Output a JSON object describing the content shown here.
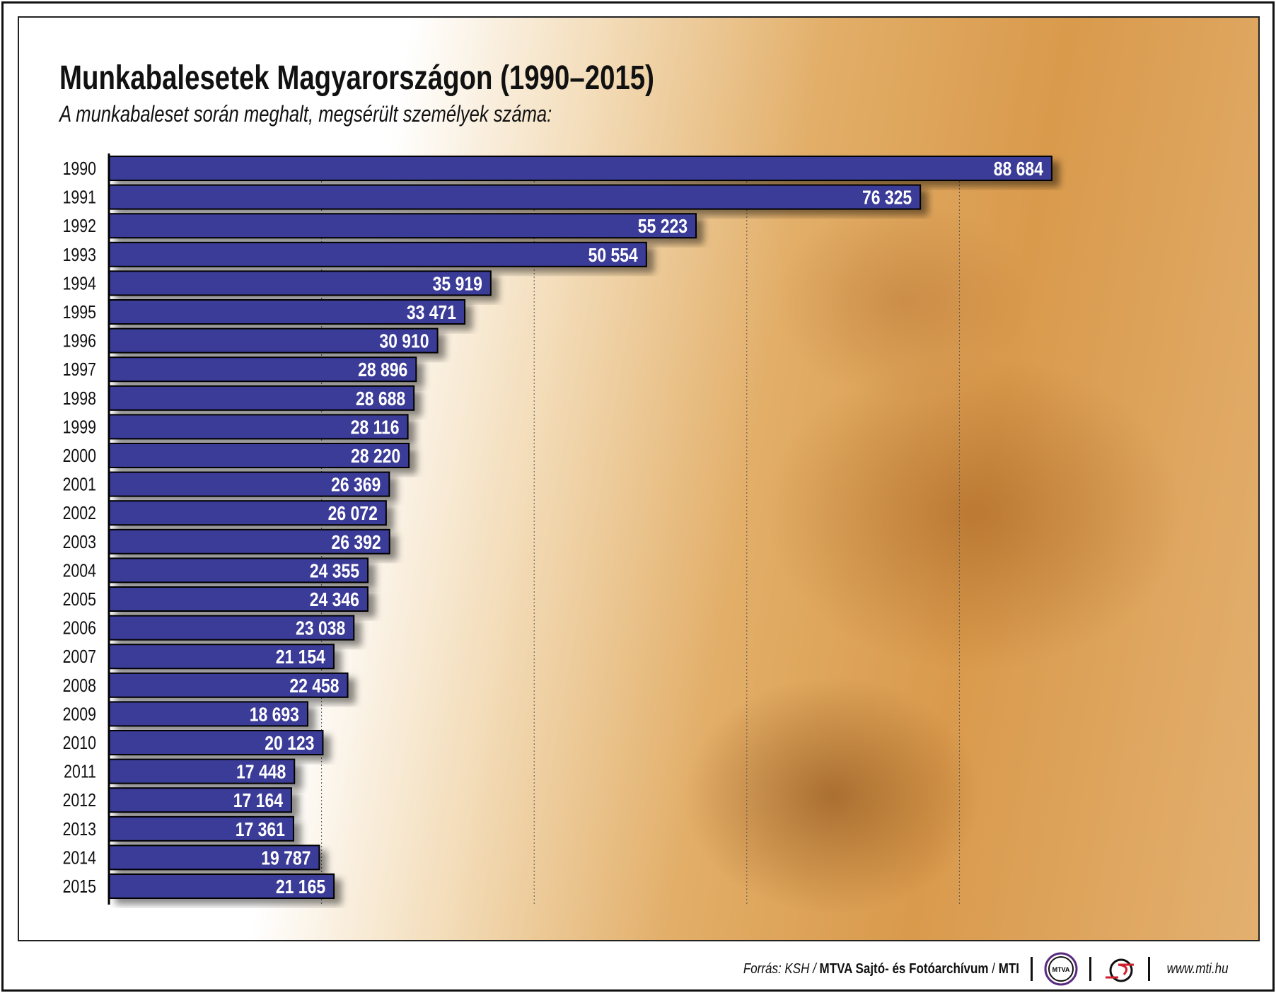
{
  "chart_data": {
    "type": "bar",
    "orientation": "horizontal",
    "title": "Munkabalesetek Magyarországon (1990–2015)",
    "subtitle": "A munkabaleset során meghalt, megsérült személyek száma:",
    "categories": [
      "1990",
      "1991",
      "1992",
      "1993",
      "1994",
      "1995",
      "1996",
      "1997",
      "1998",
      "1999",
      "2000",
      "2001",
      "2002",
      "2003",
      "2004",
      "2005",
      "2006",
      "2007",
      "2008",
      "2009",
      "2010",
      "2011",
      "2012",
      "2013",
      "2014",
      "2015"
    ],
    "values": [
      88684,
      76325,
      55223,
      50554,
      35919,
      33471,
      30910,
      28896,
      28688,
      28116,
      28220,
      26369,
      26072,
      26392,
      24355,
      24346,
      23038,
      21154,
      22458,
      18693,
      20123,
      17448,
      17164,
      17361,
      19787,
      21165
    ],
    "labels": [
      "88 684",
      "76 325",
      "55 223",
      "50 554",
      "35 919",
      "33 471",
      "30 910",
      "28 896",
      "28 688",
      "28 116",
      "28 220",
      "26 369",
      "26 072",
      "26 392",
      "24 355",
      "24 346",
      "23 038",
      "21 154",
      "22 458",
      "18 693",
      "20 123",
      "17 448",
      "17 164",
      "17 361",
      "19 787",
      "21 165"
    ],
    "xlim": [
      0,
      100000
    ],
    "grid_step": 20000,
    "grid": "vertical dotted",
    "bar_color": "#3a3a98",
    "xlabel": "",
    "ylabel": ""
  },
  "footer": {
    "source_prefix": "Forrás: KSH / ",
    "source_bold": "MTVA Sajtó- és Fotóarchívum",
    "source_sep": " / ",
    "source_end": "MTI",
    "logo1": "MTVA",
    "url": "www.mti.hu"
  }
}
